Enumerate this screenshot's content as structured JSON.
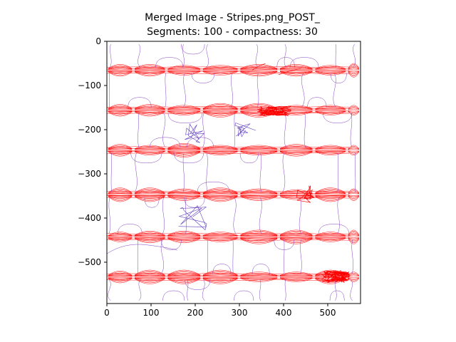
{
  "figure": {
    "title_line1": "Merged Image - Stripes.png_POST_",
    "title_line2": "Segments: 100 - compactness: 30",
    "x_ticks": [
      "0",
      "100",
      "200",
      "300",
      "400",
      "500"
    ],
    "y_ticks": [
      "0",
      "−100",
      "−200",
      "−300",
      "−400",
      "−500"
    ],
    "x_range": [
      0,
      576
    ],
    "y_range": [
      -590,
      0
    ],
    "colors": {
      "band_contours": "#ff0000",
      "segment_boundaries": "#8040c0",
      "axes": "#000000"
    }
  }
}
